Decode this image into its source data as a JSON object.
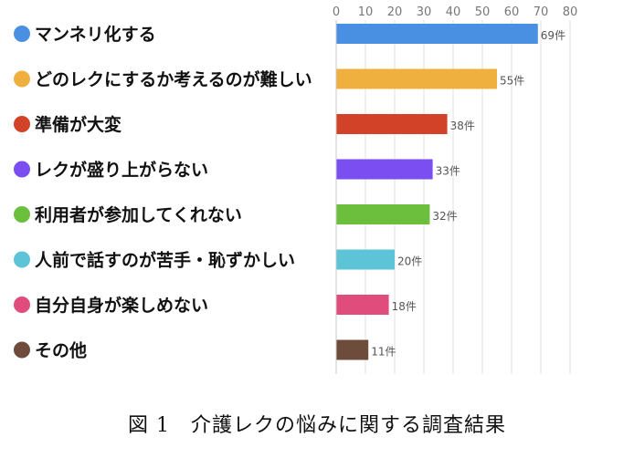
{
  "caption": "図 1　介護レクの悩みに関する調査結果",
  "chart_data": {
    "type": "bar",
    "orientation": "horizontal",
    "categories": [
      "マンネリ化する",
      "どのレクにするか考えるのが難しい",
      "準備が大変",
      "レクが盛り上がらない",
      "利用者が参加してくれない",
      "人前で話すのが苦手・恥ずかしい",
      "自分自身が楽しめない",
      "その他"
    ],
    "values": [
      69,
      55,
      38,
      33,
      32,
      20,
      18,
      11
    ],
    "data_labels": [
      "69件",
      "55件",
      "38件",
      "33件",
      "32件",
      "20件",
      "18件",
      "11件"
    ],
    "colors": [
      "#4a90e2",
      "#f0b040",
      "#d24228",
      "#7a4ef0",
      "#6cbf3c",
      "#5cc4d6",
      "#e04c7c",
      "#6e4c3c"
    ],
    "xlim": [
      0,
      80
    ],
    "xticks": [
      "0",
      "10",
      "20",
      "30",
      "40",
      "50",
      "60",
      "70",
      "80"
    ],
    "xaxis_position": "top",
    "grid": true,
    "title": "",
    "xlabel": "",
    "ylabel": ""
  }
}
